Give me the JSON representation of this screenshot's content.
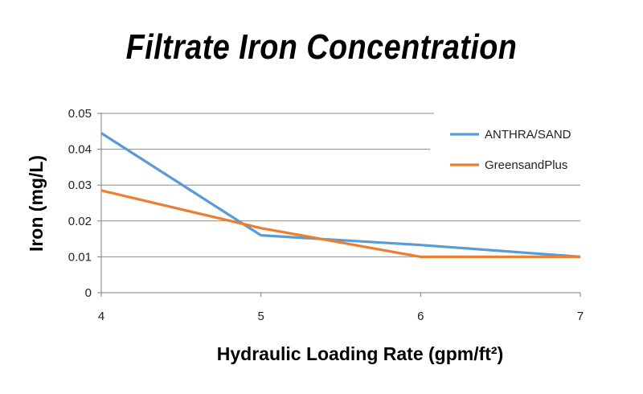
{
  "chart_data": {
    "type": "line",
    "title": "Filtrate Iron Concentration",
    "xlabel": "Hydraulic Loading Rate (gpm/ft²)",
    "ylabel": "Iron (mg/L)",
    "x": [
      4,
      5,
      6,
      7
    ],
    "x_tick_labels": [
      "4",
      "5",
      "6",
      "7"
    ],
    "xlim": [
      4,
      7
    ],
    "ylim": [
      0,
      0.05
    ],
    "y_ticks": [
      0,
      0.01,
      0.02,
      0.03,
      0.04,
      0.05
    ],
    "y_tick_labels": [
      "0",
      "0.01",
      "0.02",
      "0.03",
      "0.04",
      "0.05"
    ],
    "grid": "horizontal",
    "legend_position": "top-right",
    "series": [
      {
        "name": "ANTHRA/SAND",
        "color": "#5b9bd5",
        "values": [
          0.0445,
          0.016,
          0.0133,
          0.01
        ]
      },
      {
        "name": "GreensandPlus",
        "color": "#ed7d31",
        "values": [
          0.0285,
          0.018,
          0.01,
          0.01
        ]
      }
    ]
  }
}
